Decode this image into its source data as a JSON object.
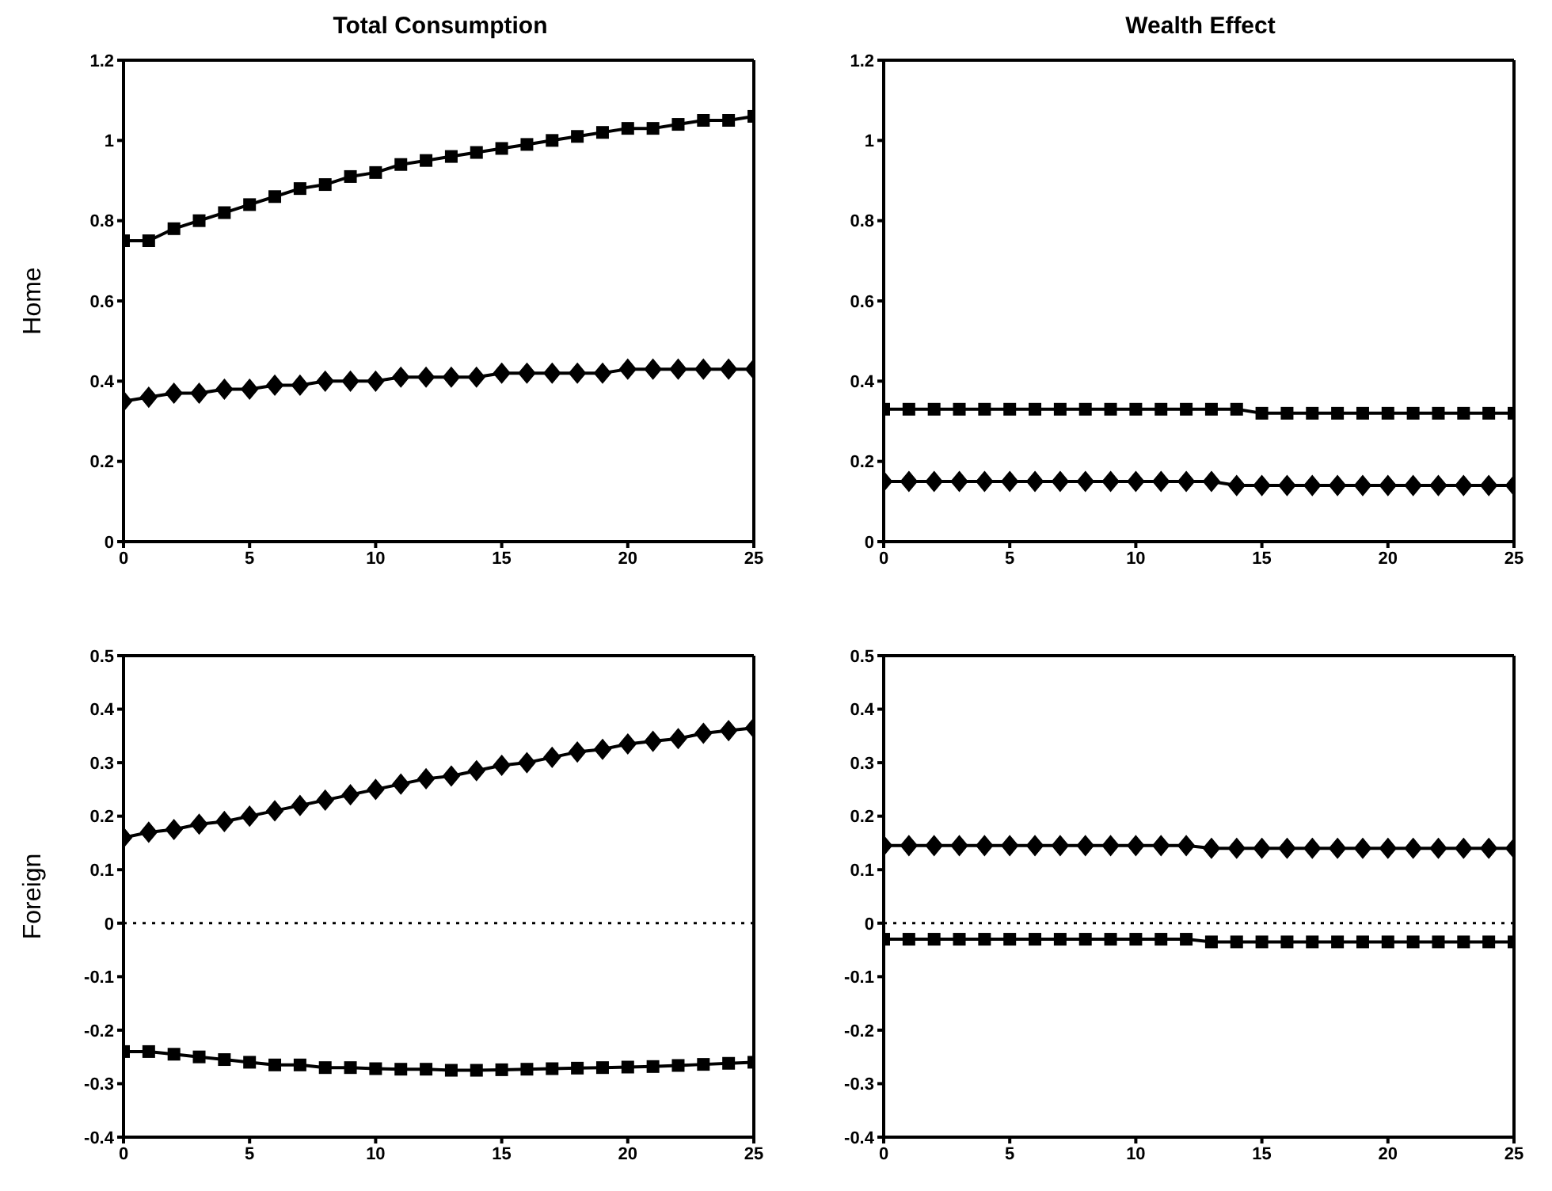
{
  "chart_data": [
    {
      "type": "line",
      "title": "Total Consumption",
      "ylabel": "Home",
      "x": [
        0,
        1,
        2,
        3,
        4,
        5,
        6,
        7,
        8,
        9,
        10,
        11,
        12,
        13,
        14,
        15,
        16,
        17,
        18,
        19,
        20,
        21,
        22,
        23,
        24,
        25
      ],
      "xlim": [
        0,
        25
      ],
      "xticks": [
        0,
        5,
        10,
        15,
        20,
        25
      ],
      "ylim": [
        0,
        1.2
      ],
      "yticks": [
        0,
        0.2,
        0.4,
        0.6,
        0.8,
        1,
        1.2
      ],
      "line_style": "solid",
      "series": [
        {
          "color": "#000000",
          "marker": "square",
          "values": [
            0.75,
            0.75,
            0.78,
            0.8,
            0.82,
            0.84,
            0.86,
            0.88,
            0.89,
            0.91,
            0.92,
            0.94,
            0.95,
            0.96,
            0.97,
            0.98,
            0.99,
            1.0,
            1.01,
            1.02,
            1.03,
            1.03,
            1.04,
            1.05,
            1.05,
            1.06
          ]
        },
        {
          "color": "#000000",
          "marker": "diamond",
          "values": [
            0.35,
            0.36,
            0.37,
            0.37,
            0.38,
            0.38,
            0.39,
            0.39,
            0.4,
            0.4,
            0.4,
            0.41,
            0.41,
            0.41,
            0.41,
            0.42,
            0.42,
            0.42,
            0.42,
            0.42,
            0.43,
            0.43,
            0.43,
            0.43,
            0.43,
            0.43
          ]
        }
      ]
    },
    {
      "type": "line",
      "title": "Wealth Effect",
      "x": [
        0,
        1,
        2,
        3,
        4,
        5,
        6,
        7,
        8,
        9,
        10,
        11,
        12,
        13,
        14,
        15,
        16,
        17,
        18,
        19,
        20,
        21,
        22,
        23,
        24,
        25
      ],
      "xlim": [
        0,
        25
      ],
      "xticks": [
        0,
        5,
        10,
        15,
        20,
        25
      ],
      "ylim": [
        0,
        1.2
      ],
      "yticks": [
        0,
        0.2,
        0.4,
        0.6,
        0.8,
        1,
        1.2
      ],
      "line_style": "solid",
      "series": [
        {
          "color": "#000000",
          "marker": "square",
          "values": [
            0.33,
            0.33,
            0.33,
            0.33,
            0.33,
            0.33,
            0.33,
            0.33,
            0.33,
            0.33,
            0.33,
            0.33,
            0.33,
            0.33,
            0.33,
            0.32,
            0.32,
            0.32,
            0.32,
            0.32,
            0.32,
            0.32,
            0.32,
            0.32,
            0.32,
            0.32
          ]
        },
        {
          "color": "#000000",
          "marker": "diamond",
          "values": [
            0.15,
            0.15,
            0.15,
            0.15,
            0.15,
            0.15,
            0.15,
            0.15,
            0.15,
            0.15,
            0.15,
            0.15,
            0.15,
            0.15,
            0.14,
            0.14,
            0.14,
            0.14,
            0.14,
            0.14,
            0.14,
            0.14,
            0.14,
            0.14,
            0.14,
            0.14
          ]
        }
      ]
    },
    {
      "type": "line",
      "ylabel": "Foreign",
      "x": [
        0,
        1,
        2,
        3,
        4,
        5,
        6,
        7,
        8,
        9,
        10,
        11,
        12,
        13,
        14,
        15,
        16,
        17,
        18,
        19,
        20,
        21,
        22,
        23,
        24,
        25
      ],
      "xlim": [
        0,
        25
      ],
      "xticks": [
        0,
        5,
        10,
        15,
        20,
        25
      ],
      "ylim": [
        -0.4,
        0.5
      ],
      "yticks": [
        -0.4,
        -0.3,
        -0.2,
        -0.1,
        0,
        0.1,
        0.2,
        0.3,
        0.4,
        0.5
      ],
      "line_style": "solid",
      "ref_lines": [
        {
          "axis": "y",
          "value": 0,
          "color": "#000000",
          "line_style": "dotted"
        }
      ],
      "series": [
        {
          "color": "#000000",
          "marker": "diamond",
          "values": [
            0.16,
            0.17,
            0.175,
            0.185,
            0.19,
            0.2,
            0.21,
            0.22,
            0.23,
            0.24,
            0.25,
            0.26,
            0.27,
            0.275,
            0.285,
            0.295,
            0.3,
            0.31,
            0.32,
            0.325,
            0.335,
            0.34,
            0.345,
            0.355,
            0.36,
            0.365
          ]
        },
        {
          "color": "#000000",
          "marker": "square",
          "values": [
            -0.24,
            -0.24,
            -0.245,
            -0.25,
            -0.255,
            -0.26,
            -0.265,
            -0.265,
            -0.27,
            -0.27,
            -0.272,
            -0.273,
            -0.273,
            -0.275,
            -0.275,
            -0.274,
            -0.273,
            -0.272,
            -0.271,
            -0.27,
            -0.269,
            -0.268,
            -0.266,
            -0.264,
            -0.262,
            -0.26
          ]
        }
      ]
    },
    {
      "type": "line",
      "x": [
        0,
        1,
        2,
        3,
        4,
        5,
        6,
        7,
        8,
        9,
        10,
        11,
        12,
        13,
        14,
        15,
        16,
        17,
        18,
        19,
        20,
        21,
        22,
        23,
        24,
        25
      ],
      "xlim": [
        0,
        25
      ],
      "xticks": [
        0,
        5,
        10,
        15,
        20,
        25
      ],
      "ylim": [
        -0.4,
        0.5
      ],
      "yticks": [
        -0.4,
        -0.3,
        -0.2,
        -0.1,
        0,
        0.1,
        0.2,
        0.3,
        0.4,
        0.5
      ],
      "line_style": "solid",
      "ref_lines": [
        {
          "axis": "y",
          "value": 0,
          "color": "#000000",
          "line_style": "dotted"
        }
      ],
      "series": [
        {
          "color": "#000000",
          "marker": "diamond",
          "values": [
            0.145,
            0.145,
            0.145,
            0.145,
            0.145,
            0.145,
            0.145,
            0.145,
            0.145,
            0.145,
            0.145,
            0.145,
            0.145,
            0.14,
            0.14,
            0.14,
            0.14,
            0.14,
            0.14,
            0.14,
            0.14,
            0.14,
            0.14,
            0.14,
            0.14,
            0.14
          ]
        },
        {
          "color": "#000000",
          "marker": "square",
          "values": [
            -0.03,
            -0.03,
            -0.03,
            -0.03,
            -0.03,
            -0.03,
            -0.03,
            -0.03,
            -0.03,
            -0.03,
            -0.03,
            -0.03,
            -0.03,
            -0.035,
            -0.035,
            -0.035,
            -0.035,
            -0.035,
            -0.035,
            -0.035,
            -0.035,
            -0.035,
            -0.035,
            -0.035,
            -0.035,
            -0.035
          ]
        }
      ]
    }
  ]
}
